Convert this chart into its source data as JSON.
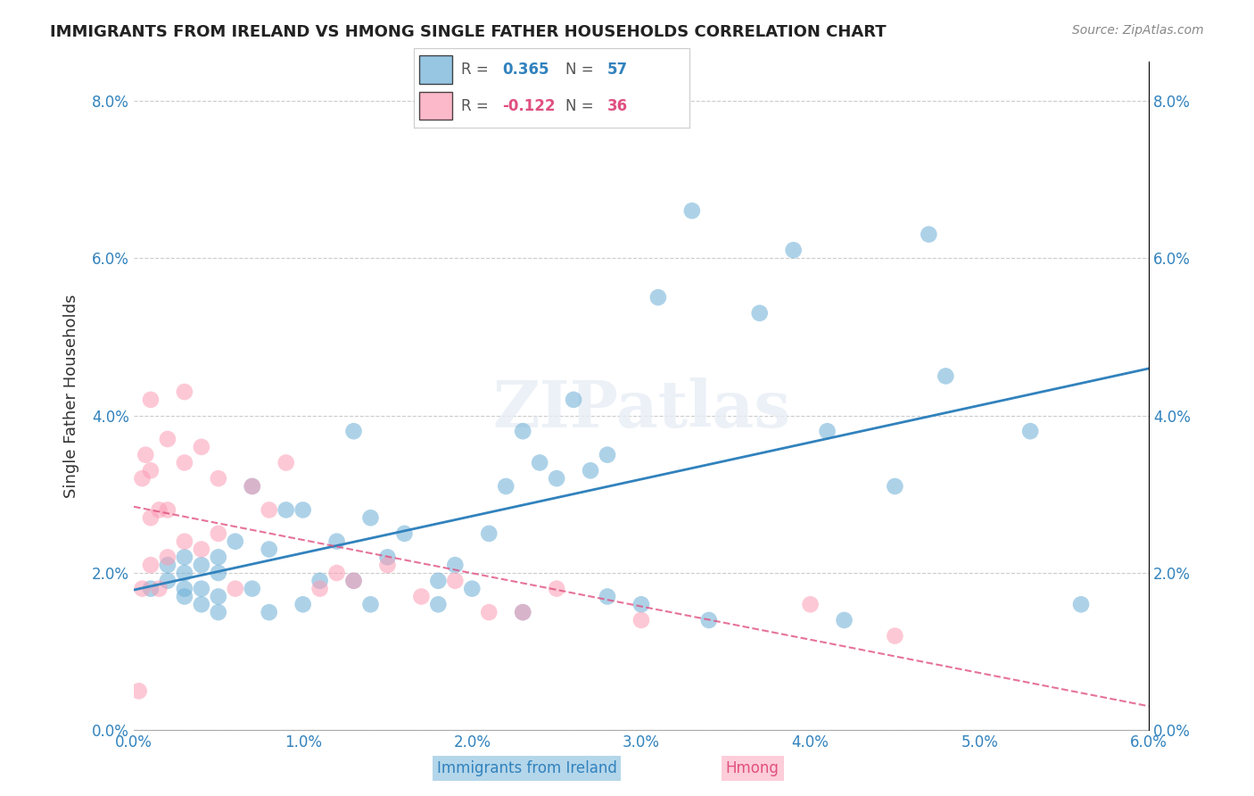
{
  "title": "IMMIGRANTS FROM IRELAND VS HMONG SINGLE FATHER HOUSEHOLDS CORRELATION CHART",
  "source": "Source: ZipAtlas.com",
  "xlabel": "",
  "ylabel": "Single Father Households",
  "xlim": [
    0.0,
    0.06
  ],
  "ylim": [
    0.0,
    0.085
  ],
  "xticks": [
    0.0,
    0.01,
    0.02,
    0.03,
    0.04,
    0.05,
    0.06
  ],
  "yticks": [
    0.0,
    0.02,
    0.04,
    0.06,
    0.08
  ],
  "ireland_R": 0.365,
  "ireland_N": 57,
  "hmong_R": -0.122,
  "hmong_N": 36,
  "ireland_color": "#6baed6",
  "hmong_color": "#fc9cb4",
  "ireland_line_color": "#3182bd",
  "hmong_line_color": "#e05080",
  "background_color": "#ffffff",
  "watermark": "ZIPatlas",
  "ireland_x": [
    0.001,
    0.002,
    0.002,
    0.003,
    0.003,
    0.003,
    0.003,
    0.004,
    0.004,
    0.004,
    0.005,
    0.005,
    0.005,
    0.005,
    0.006,
    0.007,
    0.007,
    0.008,
    0.008,
    0.009,
    0.01,
    0.01,
    0.011,
    0.012,
    0.013,
    0.013,
    0.014,
    0.014,
    0.015,
    0.016,
    0.018,
    0.018,
    0.019,
    0.02,
    0.021,
    0.022,
    0.023,
    0.023,
    0.024,
    0.025,
    0.026,
    0.027,
    0.028,
    0.028,
    0.03,
    0.031,
    0.033,
    0.034,
    0.037,
    0.039,
    0.041,
    0.042,
    0.045,
    0.047,
    0.048,
    0.053,
    0.056
  ],
  "ireland_y": [
    0.018,
    0.019,
    0.021,
    0.017,
    0.018,
    0.02,
    0.022,
    0.016,
    0.018,
    0.021,
    0.015,
    0.017,
    0.02,
    0.022,
    0.024,
    0.018,
    0.031,
    0.015,
    0.023,
    0.028,
    0.016,
    0.028,
    0.019,
    0.024,
    0.019,
    0.038,
    0.016,
    0.027,
    0.022,
    0.025,
    0.016,
    0.019,
    0.021,
    0.018,
    0.025,
    0.031,
    0.015,
    0.038,
    0.034,
    0.032,
    0.042,
    0.033,
    0.035,
    0.017,
    0.016,
    0.055,
    0.066,
    0.014,
    0.053,
    0.061,
    0.038,
    0.014,
    0.031,
    0.063,
    0.045,
    0.038,
    0.016
  ],
  "hmong_x": [
    0.0003,
    0.0005,
    0.0005,
    0.0007,
    0.001,
    0.001,
    0.001,
    0.001,
    0.0015,
    0.0015,
    0.002,
    0.002,
    0.002,
    0.003,
    0.003,
    0.003,
    0.004,
    0.004,
    0.005,
    0.005,
    0.006,
    0.007,
    0.008,
    0.009,
    0.011,
    0.012,
    0.013,
    0.015,
    0.017,
    0.019,
    0.021,
    0.023,
    0.025,
    0.03,
    0.04,
    0.045
  ],
  "hmong_y": [
    0.005,
    0.018,
    0.032,
    0.035,
    0.021,
    0.027,
    0.033,
    0.042,
    0.018,
    0.028,
    0.022,
    0.028,
    0.037,
    0.024,
    0.034,
    0.043,
    0.023,
    0.036,
    0.032,
    0.025,
    0.018,
    0.031,
    0.028,
    0.034,
    0.018,
    0.02,
    0.019,
    0.021,
    0.017,
    0.019,
    0.015,
    0.015,
    0.018,
    0.014,
    0.016,
    0.012
  ]
}
